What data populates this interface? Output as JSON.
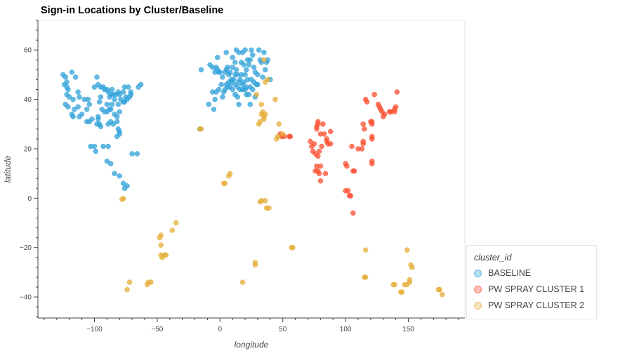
{
  "chart_data": {
    "type": "scatter",
    "title": "Sign-in Locations by Cluster/Baseline",
    "xlabel": "longitude",
    "ylabel": "latitude",
    "xlim": [
      -145,
      195
    ],
    "ylim": [
      -48.5,
      72
    ],
    "xticks": [
      -100,
      -50,
      0,
      50,
      100,
      150
    ],
    "yticks": [
      -40,
      -20,
      0,
      20,
      40,
      60
    ],
    "grid": false,
    "legend_position": "bottom-right, outside plot",
    "legend_title": "cluster_id",
    "series": [
      {
        "name": "BASELINE",
        "color": "#30a2da",
        "points": [
          [
            -125,
            50
          ],
          [
            -123,
            49
          ],
          [
            -122,
            47
          ],
          [
            -124,
            46
          ],
          [
            -122,
            45
          ],
          [
            -121,
            44
          ],
          [
            -122,
            42
          ],
          [
            -120,
            41
          ],
          [
            -118,
            51
          ],
          [
            -115,
            49
          ],
          [
            -113,
            43
          ],
          [
            -117,
            40
          ],
          [
            -112,
            41
          ],
          [
            -106,
            36
          ],
          [
            -110,
            34
          ],
          [
            -112,
            33
          ],
          [
            -105,
            40
          ],
          [
            -104,
            38
          ],
          [
            -98,
            49
          ],
          [
            -97,
            46
          ],
          [
            -93,
            45
          ],
          [
            -90,
            44
          ],
          [
            -87,
            42
          ],
          [
            -88,
            41
          ],
          [
            -85,
            42
          ],
          [
            -84,
            40
          ],
          [
            -86,
            38
          ],
          [
            -88,
            36
          ],
          [
            -90,
            38
          ],
          [
            -92,
            35
          ],
          [
            -90,
            35
          ],
          [
            -87,
            36
          ],
          [
            -84,
            34
          ],
          [
            -82,
            33
          ],
          [
            -80,
            35
          ],
          [
            -79,
            40
          ],
          [
            -80,
            42
          ],
          [
            -77,
            43
          ],
          [
            -75,
            41
          ],
          [
            -76,
            45
          ],
          [
            -73,
            45
          ],
          [
            -71,
            42
          ],
          [
            -77,
            39
          ],
          [
            -81,
            38
          ],
          [
            -95,
            41
          ],
          [
            -96,
            39
          ],
          [
            -94,
            36
          ],
          [
            -97,
            33
          ],
          [
            -96,
            30
          ],
          [
            -98,
            30
          ],
          [
            -95,
            29
          ],
          [
            -89,
            30
          ],
          [
            -87,
            31
          ],
          [
            -85,
            30
          ],
          [
            -82,
            31
          ],
          [
            -81,
            28
          ],
          [
            -82,
            25
          ],
          [
            -80,
            27
          ],
          [
            -80,
            26
          ],
          [
            -97,
            32
          ],
          [
            -104,
            31
          ],
          [
            -102,
            32
          ],
          [
            -100,
            21
          ],
          [
            -99,
            19
          ],
          [
            -103,
            21
          ],
          [
            -93,
            21
          ],
          [
            -89,
            21
          ],
          [
            -90,
            15
          ],
          [
            -87,
            14
          ],
          [
            -84,
            10
          ],
          [
            -80,
            9
          ],
          [
            -77,
            6
          ],
          [
            -76,
            4
          ],
          [
            -74,
            5
          ],
          [
            -70,
            18
          ],
          [
            -66,
            18
          ],
          [
            -65,
            45
          ],
          [
            -63,
            46
          ],
          [
            -81,
            43
          ],
          [
            -83,
            42
          ],
          [
            -123,
            38
          ],
          [
            -121,
            37
          ],
          [
            -118,
            34
          ],
          [
            -117,
            33
          ],
          [
            -116,
            36
          ],
          [
            -113,
            37
          ],
          [
            -108,
            40
          ],
          [
            -106,
            31
          ],
          [
            -100,
            45
          ],
          [
            -95,
            45
          ],
          [
            -92,
            44
          ],
          [
            -89,
            43
          ],
          [
            -86,
            44
          ],
          [
            -76,
            39
          ],
          [
            -74,
            40
          ],
          [
            -72,
            41
          ],
          [
            -71,
            43
          ],
          [
            -3,
            53
          ],
          [
            -6,
            53
          ],
          [
            -4,
            51
          ],
          [
            -2,
            52
          ],
          [
            -1,
            51
          ],
          [
            0,
            51
          ],
          [
            2,
            49
          ],
          [
            4,
            51
          ],
          [
            5,
            52
          ],
          [
            6,
            53
          ],
          [
            7,
            50
          ],
          [
            8,
            51
          ],
          [
            9,
            48
          ],
          [
            10,
            53
          ],
          [
            11,
            48
          ],
          [
            12,
            50
          ],
          [
            13,
            52
          ],
          [
            14,
            50
          ],
          [
            15,
            47
          ],
          [
            16,
            48
          ],
          [
            17,
            50
          ],
          [
            18,
            59
          ],
          [
            19,
            54
          ],
          [
            20,
            50
          ],
          [
            21,
            52
          ],
          [
            22,
            56
          ],
          [
            23,
            54
          ],
          [
            24,
            56
          ],
          [
            25,
            60
          ],
          [
            26,
            58
          ],
          [
            27,
            53
          ],
          [
            28,
            51
          ],
          [
            30,
            50
          ],
          [
            30,
            46
          ],
          [
            31,
            60
          ],
          [
            33,
            55
          ],
          [
            35,
            59
          ],
          [
            37,
            55
          ],
          [
            -2,
            57
          ],
          [
            -8,
            54
          ],
          [
            -9,
            38
          ],
          [
            -4,
            40
          ],
          [
            -3,
            43
          ],
          [
            -1,
            44
          ],
          [
            1,
            46
          ],
          [
            2,
            41
          ],
          [
            4,
            44
          ],
          [
            6,
            45
          ],
          [
            8,
            45
          ],
          [
            10,
            44
          ],
          [
            12,
            42
          ],
          [
            14,
            41
          ],
          [
            15,
            38
          ],
          [
            16,
            44
          ],
          [
            18,
            44
          ],
          [
            20,
            44
          ],
          [
            21,
            42
          ],
          [
            23,
            42
          ],
          [
            24,
            38
          ],
          [
            26,
            44
          ],
          [
            27,
            47
          ],
          [
            28,
            41
          ],
          [
            25,
            48
          ],
          [
            14,
            45
          ],
          [
            12,
            46
          ],
          [
            9,
            47
          ],
          [
            7,
            47
          ],
          [
            5,
            46
          ],
          [
            3,
            43
          ],
          [
            -5,
            36
          ],
          [
            -6,
            43
          ],
          [
            10,
            57
          ],
          [
            12,
            55
          ],
          [
            17,
            55
          ],
          [
            18,
            46
          ],
          [
            19,
            47
          ],
          [
            21,
            45
          ],
          [
            22,
            48
          ],
          [
            24,
            45
          ],
          [
            29,
            46
          ],
          [
            34,
            49
          ],
          [
            36,
            52
          ],
          [
            40,
            48
          ],
          [
            38,
            56
          ],
          [
            32,
            56
          ],
          [
            -16,
            28
          ],
          [
            -15,
            52
          ],
          [
            13,
            60
          ],
          [
            15,
            59
          ],
          [
            20,
            60
          ],
          [
            5,
            59
          ]
        ]
      },
      {
        "name": "PW SPRAY CLUSTER 1",
        "color": "#fc4f30",
        "points": [
          [
            48,
            26
          ],
          [
            49,
            25
          ],
          [
            51,
            25
          ],
          [
            55,
            25
          ],
          [
            56,
            25
          ],
          [
            72,
            23
          ],
          [
            73,
            21
          ],
          [
            74,
            19
          ],
          [
            75,
            22
          ],
          [
            76,
            18
          ],
          [
            77,
            28
          ],
          [
            77,
            29
          ],
          [
            78,
            17
          ],
          [
            78,
            30
          ],
          [
            79,
            19
          ],
          [
            80,
            13
          ],
          [
            78,
            11
          ],
          [
            76,
            11
          ],
          [
            77,
            13
          ],
          [
            79,
            10
          ],
          [
            80,
            26
          ],
          [
            81,
            21
          ],
          [
            83,
            26
          ],
          [
            85,
            23
          ],
          [
            85,
            24
          ],
          [
            86,
            22
          ],
          [
            88,
            22
          ],
          [
            88,
            27
          ],
          [
            100,
            14
          ],
          [
            101,
            13
          ],
          [
            100,
            3
          ],
          [
            102,
            3
          ],
          [
            103,
            1
          ],
          [
            104,
            1
          ],
          [
            106,
            11
          ],
          [
            107,
            11
          ],
          [
            106,
            -6
          ],
          [
            105,
            21
          ],
          [
            110,
            20
          ],
          [
            114,
            22
          ],
          [
            114,
            23
          ],
          [
            116,
            40
          ],
          [
            117,
            39
          ],
          [
            120,
            31
          ],
          [
            121,
            31
          ],
          [
            121,
            25
          ],
          [
            121,
            24
          ],
          [
            121,
            15
          ],
          [
            121,
            14
          ],
          [
            121,
            30
          ],
          [
            123,
            42
          ],
          [
            126,
            38
          ],
          [
            127,
            37
          ],
          [
            128,
            36
          ],
          [
            129,
            35
          ],
          [
            135,
            35
          ],
          [
            136,
            35
          ],
          [
            139,
            36
          ],
          [
            140,
            37
          ],
          [
            141,
            43
          ],
          [
            130,
            33
          ],
          [
            131,
            34
          ],
          [
            139,
            35
          ],
          [
            84,
            10
          ],
          [
            80,
            7
          ],
          [
            82,
            30
          ],
          [
            78,
            31
          ],
          [
            113,
            20
          ],
          [
            114,
            30
          ],
          [
            115,
            28
          ]
        ]
      },
      {
        "name": "PW SPRAY CLUSTER 2",
        "color": "#e5ae38",
        "points": [
          [
            -77,
            -0.2
          ],
          [
            -78,
            -0.4
          ],
          [
            -74,
            -37
          ],
          [
            -72,
            -34
          ],
          [
            -58,
            -35
          ],
          [
            -57,
            -34
          ],
          [
            -55,
            -34
          ],
          [
            -47,
            -15
          ],
          [
            -48,
            -16
          ],
          [
            -47,
            -19
          ],
          [
            -47,
            -23
          ],
          [
            -46,
            -24
          ],
          [
            -43,
            -23
          ],
          [
            -44,
            -23
          ],
          [
            -38,
            -13
          ],
          [
            -35,
            -10
          ],
          [
            -15,
            28
          ],
          [
            -16,
            28
          ],
          [
            3,
            6
          ],
          [
            4,
            6
          ],
          [
            7,
            9
          ],
          [
            8,
            10
          ],
          [
            18,
            -34
          ],
          [
            28,
            -26
          ],
          [
            28,
            -27
          ],
          [
            32,
            -1.5
          ],
          [
            33,
            -1
          ],
          [
            36,
            -1
          ],
          [
            37,
            -4
          ],
          [
            39,
            -4
          ],
          [
            35,
            56
          ],
          [
            36,
            47
          ],
          [
            38,
            48
          ],
          [
            44,
            40
          ],
          [
            31,
            30
          ],
          [
            32,
            31
          ],
          [
            33,
            34
          ],
          [
            34,
            35
          ],
          [
            35,
            33
          ],
          [
            36,
            34
          ],
          [
            35,
            32
          ],
          [
            46,
            25
          ],
          [
            45,
            24
          ],
          [
            47,
            30
          ],
          [
            50,
            26
          ],
          [
            57,
            -20
          ],
          [
            58,
            -20
          ],
          [
            116,
            -32
          ],
          [
            115,
            -32
          ],
          [
            116,
            -21
          ],
          [
            138,
            -35
          ],
          [
            139,
            -35
          ],
          [
            145,
            -38
          ],
          [
            144,
            -38
          ],
          [
            147,
            -35
          ],
          [
            149,
            -35
          ],
          [
            151,
            -34
          ],
          [
            151,
            -33
          ],
          [
            152,
            -27
          ],
          [
            153,
            -28
          ],
          [
            149,
            -21
          ],
          [
            175,
            -37
          ],
          [
            174,
            -37
          ],
          [
            177,
            -39
          ],
          [
            29,
            42
          ],
          [
            33,
            38
          ]
        ]
      }
    ]
  }
}
